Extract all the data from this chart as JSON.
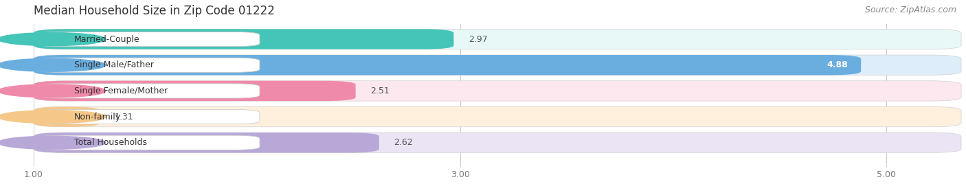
{
  "title": "Median Household Size in Zip Code 01222",
  "source": "Source: ZipAtlas.com",
  "categories": [
    "Married-Couple",
    "Single Male/Father",
    "Single Female/Mother",
    "Non-family",
    "Total Households"
  ],
  "values": [
    2.97,
    4.88,
    2.51,
    1.31,
    2.62
  ],
  "bar_colors": [
    "#45c4b8",
    "#6aaee0",
    "#f08aaa",
    "#f5c88a",
    "#b8a8d8"
  ],
  "bar_bg_colors": [
    "#e8f8f7",
    "#ddeefa",
    "#fde8ef",
    "#fef0dc",
    "#eae4f4"
  ],
  "value_colors": [
    "#555555",
    "#ffffff",
    "#555555",
    "#555555",
    "#555555"
  ],
  "xlim_start": 1.0,
  "xlim_end": 5.35,
  "xticks": [
    1.0,
    3.0,
    5.0
  ],
  "bar_height": 0.78,
  "bar_gap": 0.06,
  "figure_bg": "#ffffff",
  "plot_bg": "#f0f0f0",
  "title_fontsize": 12,
  "source_fontsize": 9,
  "label_fontsize": 9,
  "value_fontsize": 9
}
